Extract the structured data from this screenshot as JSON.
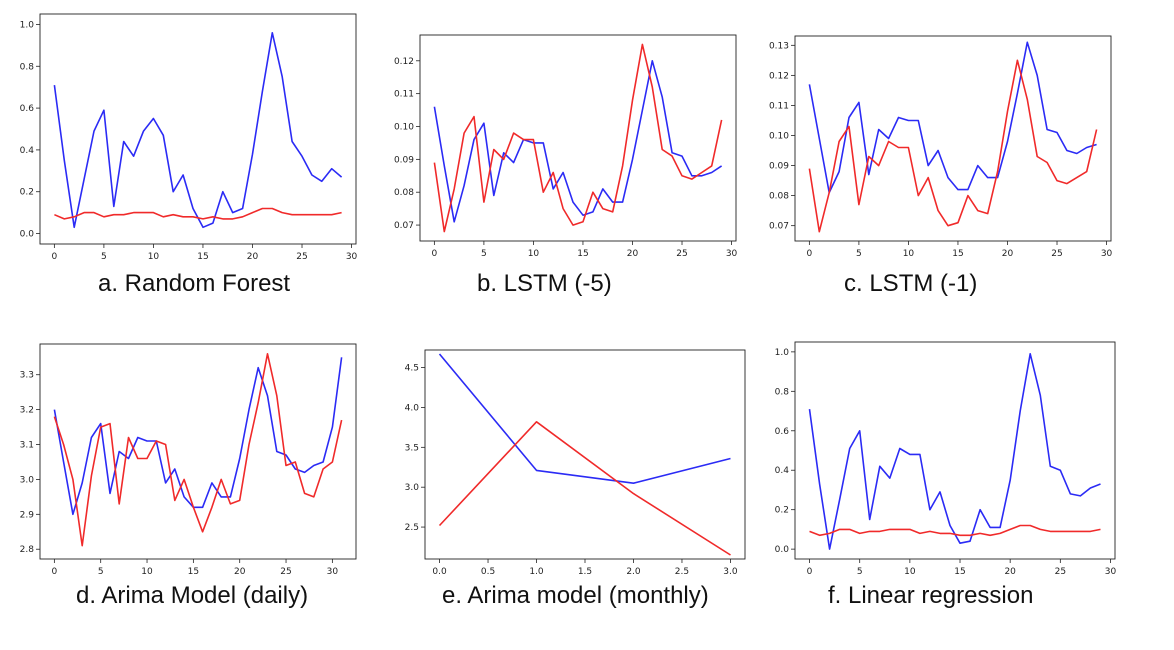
{
  "colors": {
    "blue": "#2b2bf5",
    "red": "#f02a2a"
  },
  "chart_data": [
    {
      "type": "line",
      "caption": "a.  Random Forest",
      "xlim": [
        0,
        29
      ],
      "ylim": [
        0.0,
        1.0
      ],
      "xticks": [
        0,
        5,
        10,
        15,
        20,
        25,
        30
      ],
      "xtick_labels": [
        "0",
        "5",
        "10",
        "15",
        "20",
        "25",
        "30"
      ],
      "yticks": [
        0.0,
        0.2,
        0.4,
        0.6,
        0.8,
        1.0
      ],
      "ytick_labels": [
        "0.0",
        "0.2",
        "0.4",
        "0.6",
        "0.8",
        "1.0"
      ],
      "series": [
        {
          "color": "blue",
          "x": [
            0,
            1,
            2,
            3,
            4,
            5,
            6,
            7,
            8,
            9,
            10,
            11,
            12,
            13,
            14,
            15,
            16,
            17,
            18,
            19,
            20,
            21,
            22,
            23,
            24,
            25,
            26,
            27,
            28,
            29
          ],
          "y": [
            0.71,
            0.35,
            0.03,
            0.26,
            0.49,
            0.59,
            0.13,
            0.44,
            0.37,
            0.49,
            0.55,
            0.47,
            0.2,
            0.28,
            0.12,
            0.03,
            0.05,
            0.2,
            0.1,
            0.12,
            0.38,
            0.68,
            0.96,
            0.75,
            0.44,
            0.37,
            0.28,
            0.25,
            0.31,
            0.27
          ]
        },
        {
          "color": "red",
          "x": [
            0,
            1,
            2,
            3,
            4,
            5,
            6,
            7,
            8,
            9,
            10,
            11,
            12,
            13,
            14,
            15,
            16,
            17,
            18,
            19,
            20,
            21,
            22,
            23,
            24,
            25,
            26,
            27,
            28,
            29
          ],
          "y": [
            0.09,
            0.07,
            0.08,
            0.1,
            0.1,
            0.08,
            0.09,
            0.09,
            0.1,
            0.1,
            0.1,
            0.08,
            0.09,
            0.08,
            0.08,
            0.07,
            0.08,
            0.07,
            0.07,
            0.08,
            0.1,
            0.12,
            0.12,
            0.1,
            0.09,
            0.09,
            0.09,
            0.09,
            0.09,
            0.1
          ]
        }
      ]
    },
    {
      "type": "line",
      "caption": "b.  LSTM (-5)",
      "xlim": [
        0,
        29
      ],
      "ylim": [
        0.068,
        0.125
      ],
      "xticks": [
        0,
        5,
        10,
        15,
        20,
        25,
        30
      ],
      "xtick_labels": [
        "0",
        "5",
        "10",
        "15",
        "20",
        "25",
        "30"
      ],
      "yticks": [
        0.07,
        0.08,
        0.09,
        0.1,
        0.11,
        0.12
      ],
      "ytick_labels": [
        "0.07",
        "0.08",
        "0.09",
        "0.10",
        "0.11",
        "0.12"
      ],
      "series": [
        {
          "color": "blue",
          "x": [
            0,
            1,
            2,
            3,
            4,
            5,
            6,
            7,
            8,
            9,
            10,
            11,
            12,
            13,
            14,
            15,
            16,
            17,
            18,
            19,
            20,
            21,
            22,
            23,
            24,
            25,
            26,
            27,
            28,
            29
          ],
          "y": [
            0.106,
            0.088,
            0.071,
            0.082,
            0.096,
            0.101,
            0.079,
            0.092,
            0.089,
            0.096,
            0.095,
            0.095,
            0.081,
            0.086,
            0.077,
            0.073,
            0.074,
            0.081,
            0.077,
            0.077,
            0.09,
            0.105,
            0.12,
            0.109,
            0.092,
            0.091,
            0.085,
            0.085,
            0.086,
            0.088
          ]
        },
        {
          "color": "red",
          "x": [
            0,
            1,
            2,
            3,
            4,
            5,
            6,
            7,
            8,
            9,
            10,
            11,
            12,
            13,
            14,
            15,
            16,
            17,
            18,
            19,
            20,
            21,
            22,
            23,
            24,
            25,
            26,
            27,
            28,
            29
          ],
          "y": [
            0.089,
            0.068,
            0.081,
            0.098,
            0.103,
            0.077,
            0.093,
            0.09,
            0.098,
            0.096,
            0.096,
            0.08,
            0.086,
            0.075,
            0.07,
            0.071,
            0.08,
            0.075,
            0.074,
            0.088,
            0.108,
            0.125,
            0.112,
            0.093,
            0.091,
            0.085,
            0.084,
            0.086,
            0.088,
            0.102
          ]
        }
      ]
    },
    {
      "type": "line",
      "caption": "c.  LSTM (-1)",
      "xlim": [
        0,
        29
      ],
      "ylim": [
        0.068,
        0.13
      ],
      "xticks": [
        0,
        5,
        10,
        15,
        20,
        25,
        30
      ],
      "xtick_labels": [
        "0",
        "5",
        "10",
        "15",
        "20",
        "25",
        "30"
      ],
      "yticks": [
        0.07,
        0.08,
        0.09,
        0.1,
        0.11,
        0.12,
        0.13
      ],
      "ytick_labels": [
        "0.07",
        "0.08",
        "0.09",
        "0.10",
        "0.11",
        "0.12",
        "0.13"
      ],
      "series": [
        {
          "color": "blue",
          "x": [
            0,
            1,
            2,
            3,
            4,
            5,
            6,
            7,
            8,
            9,
            10,
            11,
            12,
            13,
            14,
            15,
            16,
            17,
            18,
            19,
            20,
            21,
            22,
            23,
            24,
            25,
            26,
            27,
            28,
            29
          ],
          "y": [
            0.117,
            0.099,
            0.081,
            0.088,
            0.106,
            0.111,
            0.087,
            0.102,
            0.099,
            0.106,
            0.105,
            0.105,
            0.09,
            0.095,
            0.086,
            0.082,
            0.082,
            0.09,
            0.086,
            0.086,
            0.098,
            0.114,
            0.131,
            0.12,
            0.102,
            0.101,
            0.095,
            0.094,
            0.096,
            0.097
          ]
        },
        {
          "color": "red",
          "x": [
            0,
            1,
            2,
            3,
            4,
            5,
            6,
            7,
            8,
            9,
            10,
            11,
            12,
            13,
            14,
            15,
            16,
            17,
            18,
            19,
            20,
            21,
            22,
            23,
            24,
            25,
            26,
            27,
            28,
            29
          ],
          "y": [
            0.089,
            0.068,
            0.081,
            0.098,
            0.103,
            0.077,
            0.093,
            0.09,
            0.098,
            0.096,
            0.096,
            0.08,
            0.086,
            0.075,
            0.07,
            0.071,
            0.08,
            0.075,
            0.074,
            0.088,
            0.108,
            0.125,
            0.112,
            0.093,
            0.091,
            0.085,
            0.084,
            0.086,
            0.088,
            0.102
          ]
        }
      ]
    },
    {
      "type": "line",
      "caption": "d.  Arima Model (daily)",
      "xlim": [
        0,
        31
      ],
      "ylim": [
        2.8,
        3.36
      ],
      "xticks": [
        0,
        5,
        10,
        15,
        20,
        25,
        30
      ],
      "xtick_labels": [
        "0",
        "5",
        "10",
        "15",
        "20",
        "25",
        "30"
      ],
      "yticks": [
        2.8,
        2.9,
        3.0,
        3.1,
        3.2,
        3.3
      ],
      "ytick_labels": [
        "2.8",
        "2.9",
        "3.0",
        "3.1",
        "3.2",
        "3.3"
      ],
      "series": [
        {
          "color": "blue",
          "x": [
            0,
            1,
            2,
            3,
            4,
            5,
            6,
            7,
            8,
            9,
            10,
            11,
            12,
            13,
            14,
            15,
            16,
            17,
            18,
            19,
            20,
            21,
            22,
            23,
            24,
            25,
            26,
            27,
            28,
            29,
            30,
            31
          ],
          "y": [
            3.2,
            3.05,
            2.9,
            2.99,
            3.12,
            3.16,
            2.96,
            3.08,
            3.06,
            3.12,
            3.11,
            3.11,
            2.99,
            3.03,
            2.95,
            2.92,
            2.92,
            2.99,
            2.95,
            2.95,
            3.06,
            3.2,
            3.32,
            3.24,
            3.08,
            3.07,
            3.03,
            3.02,
            3.04,
            3.05,
            3.15,
            3.35
          ]
        },
        {
          "color": "red",
          "x": [
            0,
            1,
            2,
            3,
            4,
            5,
            6,
            7,
            8,
            9,
            10,
            11,
            12,
            13,
            14,
            15,
            16,
            17,
            18,
            19,
            20,
            21,
            22,
            23,
            24,
            25,
            26,
            27,
            28,
            29,
            30,
            31
          ],
          "y": [
            3.18,
            3.1,
            3.0,
            2.81,
            3.01,
            3.15,
            3.16,
            2.93,
            3.12,
            3.06,
            3.06,
            3.11,
            3.1,
            2.94,
            3.0,
            2.92,
            2.85,
            2.92,
            3.0,
            2.93,
            2.94,
            3.1,
            3.22,
            3.36,
            3.24,
            3.04,
            3.05,
            2.96,
            2.95,
            3.03,
            3.05,
            3.17
          ]
        }
      ]
    },
    {
      "type": "line",
      "caption": "e.  Arima model (monthly)",
      "xlim": [
        0.0,
        3.0
      ],
      "ylim": [
        2.15,
        4.67
      ],
      "xticks": [
        0.0,
        0.5,
        1.0,
        1.5,
        2.0,
        2.5,
        3.0
      ],
      "xtick_labels": [
        "0.0",
        "0.5",
        "1.0",
        "1.5",
        "2.0",
        "2.5",
        "3.0"
      ],
      "yticks": [
        2.5,
        3.0,
        3.5,
        4.0,
        4.5
      ],
      "ytick_labels": [
        "2.5",
        "3.0",
        "3.5",
        "4.0",
        "4.5"
      ],
      "series": [
        {
          "color": "blue",
          "x": [
            0,
            1,
            2,
            3
          ],
          "y": [
            4.67,
            3.21,
            3.05,
            3.36
          ]
        },
        {
          "color": "red",
          "x": [
            0,
            1,
            2,
            3
          ],
          "y": [
            2.52,
            3.82,
            2.92,
            2.15
          ]
        }
      ]
    },
    {
      "type": "line",
      "caption": "f.  Linear regression",
      "xlim": [
        0,
        29
      ],
      "ylim": [
        0.0,
        1.0
      ],
      "xticks": [
        0,
        5,
        10,
        15,
        20,
        25,
        30
      ],
      "xtick_labels": [
        "0",
        "5",
        "10",
        "15",
        "20",
        "25",
        "30"
      ],
      "yticks": [
        0.0,
        0.2,
        0.4,
        0.6,
        0.8,
        1.0
      ],
      "ytick_labels": [
        "0.0",
        "0.2",
        "0.4",
        "0.6",
        "0.8",
        "1.0"
      ],
      "series": [
        {
          "color": "blue",
          "x": [
            0,
            1,
            2,
            3,
            4,
            5,
            6,
            7,
            8,
            9,
            10,
            11,
            12,
            13,
            14,
            15,
            16,
            17,
            18,
            19,
            20,
            21,
            22,
            23,
            24,
            25,
            26,
            27,
            28,
            29
          ],
          "y": [
            0.71,
            0.33,
            0.0,
            0.25,
            0.51,
            0.6,
            0.15,
            0.42,
            0.36,
            0.51,
            0.48,
            0.48,
            0.2,
            0.29,
            0.12,
            0.03,
            0.04,
            0.2,
            0.11,
            0.11,
            0.35,
            0.7,
            0.99,
            0.78,
            0.42,
            0.4,
            0.28,
            0.27,
            0.31,
            0.33
          ]
        },
        {
          "color": "red",
          "x": [
            0,
            1,
            2,
            3,
            4,
            5,
            6,
            7,
            8,
            9,
            10,
            11,
            12,
            13,
            14,
            15,
            16,
            17,
            18,
            19,
            20,
            21,
            22,
            23,
            24,
            25,
            26,
            27,
            28,
            29
          ],
          "y": [
            0.09,
            0.07,
            0.08,
            0.1,
            0.1,
            0.08,
            0.09,
            0.09,
            0.1,
            0.1,
            0.1,
            0.08,
            0.09,
            0.08,
            0.08,
            0.07,
            0.07,
            0.08,
            0.07,
            0.08,
            0.1,
            0.12,
            0.12,
            0.1,
            0.09,
            0.09,
            0.09,
            0.09,
            0.09,
            0.1
          ]
        }
      ]
    }
  ]
}
